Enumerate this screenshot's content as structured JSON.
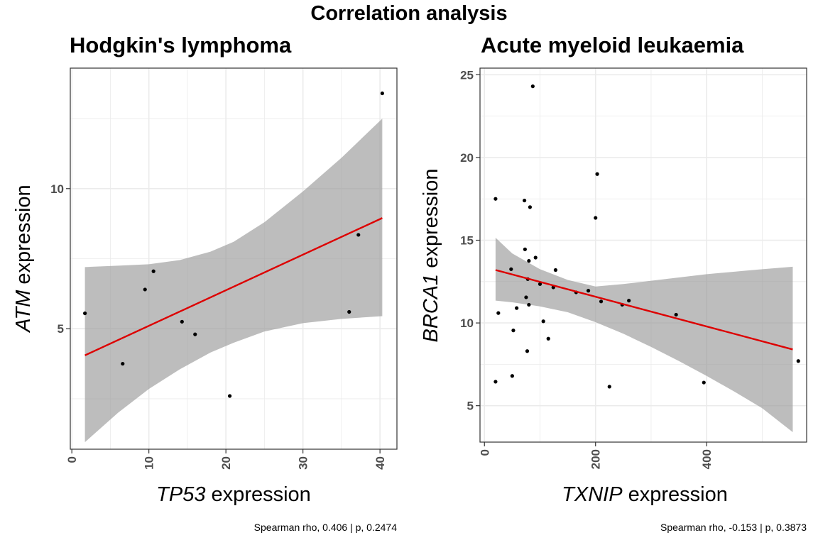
{
  "title": "Correlation analysis",
  "colors": {
    "fit_line": "#dd0000",
    "ribbon": "#999999",
    "points": "#000000",
    "grid": "#ebebeb",
    "panel_border": "#333333"
  },
  "chart_data": [
    {
      "type": "scatter",
      "title": "Hodgkin's lymphoma",
      "xlabel_gene": "TP53",
      "xlabel_suffix": " expression",
      "ylabel_gene": "ATM",
      "ylabel_suffix": " expression",
      "caption": "Spearman rho, 0.406 | p, 0.2474",
      "xlim": [
        -0.2,
        42.2
      ],
      "ylim": [
        0.7,
        14.3
      ],
      "x_breaks": [
        0,
        10,
        20,
        30,
        40
      ],
      "y_breaks": [
        5,
        10
      ],
      "x_tick_labels": [
        "0",
        "10",
        "20",
        "30",
        "40"
      ],
      "y_tick_labels": [
        "5",
        "10"
      ],
      "grid": true,
      "points": [
        {
          "x": 1.7,
          "y": 5.55
        },
        {
          "x": 6.6,
          "y": 3.75
        },
        {
          "x": 9.5,
          "y": 6.4
        },
        {
          "x": 10.6,
          "y": 7.05
        },
        {
          "x": 14.3,
          "y": 5.25
        },
        {
          "x": 16.0,
          "y": 4.8
        },
        {
          "x": 20.5,
          "y": 2.6
        },
        {
          "x": 36.0,
          "y": 5.6
        },
        {
          "x": 37.2,
          "y": 8.35
        },
        {
          "x": 40.3,
          "y": 13.4
        }
      ],
      "fit": {
        "x": [
          1.7,
          40.3
        ],
        "y": [
          4.05,
          8.95
        ]
      },
      "ribbon": {
        "x": [
          1.7,
          6.0,
          10.0,
          14.0,
          18.0,
          21.0,
          25.0,
          30.0,
          35.0,
          40.3
        ],
        "upper": [
          7.2,
          7.25,
          7.3,
          7.45,
          7.75,
          8.1,
          8.8,
          9.9,
          11.1,
          12.5
        ],
        "lower": [
          0.95,
          2.0,
          2.85,
          3.55,
          4.15,
          4.5,
          4.9,
          5.2,
          5.35,
          5.45
        ]
      }
    },
    {
      "type": "scatter",
      "title": "Acute myeloid leukaemia",
      "xlabel_gene": "TXNIP",
      "xlabel_suffix": " expression",
      "ylabel_gene": "BRCA1",
      "ylabel_suffix": " expression",
      "caption": "Spearman rho, -0.153 | p, 0.3873",
      "xlim": [
        -8,
        580
      ],
      "ylim": [
        2.8,
        25.4
      ],
      "x_breaks": [
        0,
        200,
        400
      ],
      "y_breaks": [
        5,
        10,
        15,
        20,
        25
      ],
      "x_tick_labels": [
        "0",
        "200",
        "400"
      ],
      "y_tick_labels": [
        "5",
        "10",
        "15",
        "20",
        "25"
      ],
      "grid": true,
      "points": [
        {
          "x": 20,
          "y": 17.5
        },
        {
          "x": 20,
          "y": 6.45
        },
        {
          "x": 25,
          "y": 10.6
        },
        {
          "x": 48,
          "y": 13.25
        },
        {
          "x": 50,
          "y": 6.8
        },
        {
          "x": 52,
          "y": 9.55
        },
        {
          "x": 58,
          "y": 10.9
        },
        {
          "x": 72,
          "y": 17.4
        },
        {
          "x": 73,
          "y": 14.45
        },
        {
          "x": 75,
          "y": 11.55
        },
        {
          "x": 77,
          "y": 8.3
        },
        {
          "x": 78,
          "y": 12.65
        },
        {
          "x": 80,
          "y": 13.75
        },
        {
          "x": 80,
          "y": 11.1
        },
        {
          "x": 82,
          "y": 17.0
        },
        {
          "x": 87,
          "y": 24.3
        },
        {
          "x": 92,
          "y": 13.95
        },
        {
          "x": 100,
          "y": 12.35
        },
        {
          "x": 106,
          "y": 10.1
        },
        {
          "x": 115,
          "y": 9.05
        },
        {
          "x": 124,
          "y": 12.15
        },
        {
          "x": 128,
          "y": 13.2
        },
        {
          "x": 165,
          "y": 11.85
        },
        {
          "x": 187,
          "y": 11.95
        },
        {
          "x": 200,
          "y": 16.35
        },
        {
          "x": 203,
          "y": 19.0
        },
        {
          "x": 210,
          "y": 11.3
        },
        {
          "x": 225,
          "y": 6.15
        },
        {
          "x": 248,
          "y": 11.1
        },
        {
          "x": 260,
          "y": 11.35
        },
        {
          "x": 345,
          "y": 10.5
        },
        {
          "x": 395,
          "y": 6.4
        },
        {
          "x": 565,
          "y": 7.7
        }
      ],
      "fit": {
        "x": [
          20,
          555
        ],
        "y": [
          13.2,
          8.4
        ]
      },
      "ribbon": {
        "x": [
          20,
          50,
          100,
          150,
          200,
          250,
          300,
          350,
          400,
          450,
          500,
          555
        ],
        "upper": [
          15.15,
          14.2,
          13.25,
          12.6,
          12.2,
          12.35,
          12.55,
          12.75,
          12.95,
          13.1,
          13.25,
          13.4
        ],
        "lower": [
          11.35,
          11.25,
          11.0,
          10.65,
          10.05,
          9.35,
          8.55,
          7.7,
          6.8,
          5.85,
          4.85,
          3.4
        ]
      }
    }
  ]
}
